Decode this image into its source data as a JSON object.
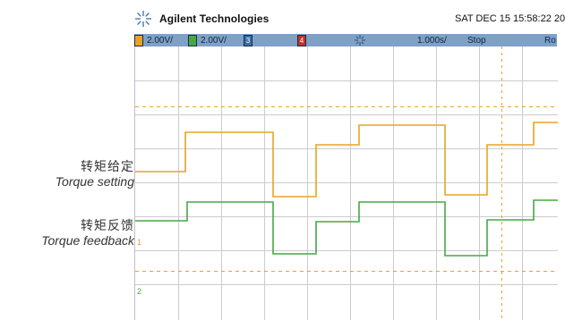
{
  "header": {
    "brand": "Agilent Technologies",
    "datetime": "SAT DEC 15 15:58:22 20"
  },
  "statusbar": {
    "ch1_scale": "2.00V/",
    "ch2_scale": "2.00V/",
    "ch3_badge": "3",
    "ch4_badge": "4",
    "timebase": "1.000s/",
    "run_state": "Stop",
    "trailing": "Ro"
  },
  "labels": {
    "setting_cn": "转矩给定",
    "setting_en": "Torque setting",
    "feedback_cn": "转矩反馈",
    "feedback_en": "Torque feedback"
  },
  "colors": {
    "ch1": "#e8a325",
    "ch2": "#45a845",
    "statusbar": "#7fa0c7",
    "grid": "#cccccc"
  }
}
